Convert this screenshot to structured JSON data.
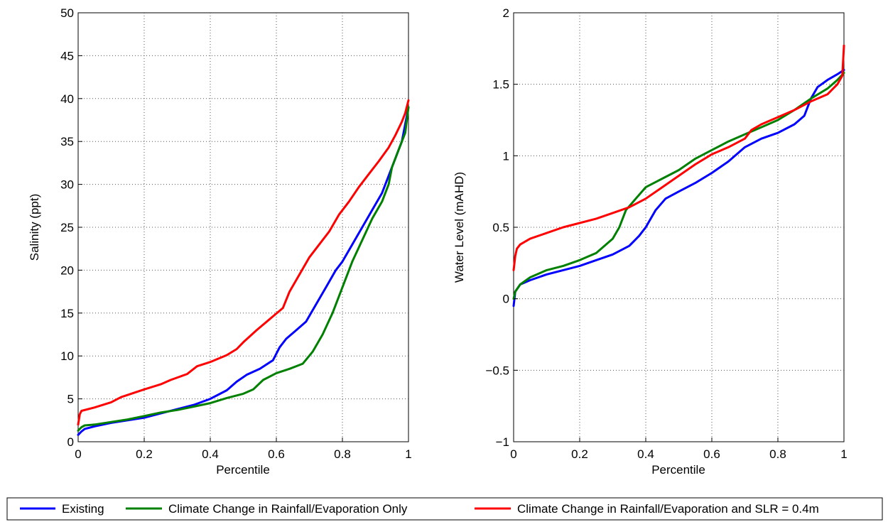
{
  "chart_data": [
    {
      "type": "line",
      "title": "",
      "xlabel": "Percentile",
      "ylabel": "Salinity (ppt)",
      "xlim": [
        0,
        1
      ],
      "ylim": [
        0,
        50
      ],
      "grid": true,
      "xticks": [
        0,
        0.2,
        0.4,
        0.6,
        0.8,
        1
      ],
      "xtick_labels": [
        "0",
        "0.2",
        "0.4",
        "0.6",
        "0.8",
        "1"
      ],
      "yticks": [
        0,
        5,
        10,
        15,
        20,
        25,
        30,
        35,
        40,
        45,
        50
      ],
      "ytick_labels": [
        "0",
        "5",
        "10",
        "15",
        "20",
        "25",
        "30",
        "35",
        "40",
        "45",
        "50"
      ],
      "series": [
        {
          "name": "Existing",
          "color": "#0000ff",
          "points": [
            [
              0,
              0.8
            ],
            [
              0.01,
              1.2
            ],
            [
              0.02,
              1.5
            ],
            [
              0.05,
              1.8
            ],
            [
              0.1,
              2.2
            ],
            [
              0.15,
              2.5
            ],
            [
              0.2,
              2.8
            ],
            [
              0.25,
              3.3
            ],
            [
              0.3,
              3.8
            ],
            [
              0.35,
              4.3
            ],
            [
              0.4,
              5
            ],
            [
              0.45,
              6
            ],
            [
              0.48,
              7
            ],
            [
              0.51,
              7.8
            ],
            [
              0.55,
              8.5
            ],
            [
              0.59,
              9.5
            ],
            [
              0.61,
              11
            ],
            [
              0.63,
              12
            ],
            [
              0.66,
              13
            ],
            [
              0.69,
              14
            ],
            [
              0.72,
              16
            ],
            [
              0.75,
              18
            ],
            [
              0.78,
              20
            ],
            [
              0.8,
              21
            ],
            [
              0.83,
              23
            ],
            [
              0.86,
              25
            ],
            [
              0.89,
              27
            ],
            [
              0.92,
              29
            ],
            [
              0.94,
              31
            ],
            [
              0.96,
              33
            ],
            [
              0.97,
              34
            ],
            [
              0.98,
              35
            ],
            [
              0.99,
              37
            ],
            [
              1,
              39
            ]
          ]
        },
        {
          "name": "Climate Change in Rainfall/Evaporation Only",
          "color": "#008000",
          "points": [
            [
              0,
              1.3
            ],
            [
              0.01,
              1.7
            ],
            [
              0.02,
              1.9
            ],
            [
              0.05,
              2.0
            ],
            [
              0.1,
              2.3
            ],
            [
              0.15,
              2.6
            ],
            [
              0.2,
              3.0
            ],
            [
              0.25,
              3.4
            ],
            [
              0.3,
              3.7
            ],
            [
              0.35,
              4.1
            ],
            [
              0.4,
              4.5
            ],
            [
              0.45,
              5.1
            ],
            [
              0.5,
              5.6
            ],
            [
              0.53,
              6.1
            ],
            [
              0.56,
              7.2
            ],
            [
              0.6,
              8
            ],
            [
              0.64,
              8.5
            ],
            [
              0.68,
              9.1
            ],
            [
              0.71,
              10.5
            ],
            [
              0.74,
              12.5
            ],
            [
              0.77,
              15
            ],
            [
              0.8,
              18
            ],
            [
              0.83,
              21
            ],
            [
              0.86,
              23.5
            ],
            [
              0.89,
              26
            ],
            [
              0.92,
              28
            ],
            [
              0.94,
              30
            ],
            [
              0.95,
              32
            ],
            [
              0.97,
              34
            ],
            [
              0.99,
              36
            ],
            [
              1,
              39
            ]
          ]
        },
        {
          "name": "Climate Change in Rainfall/Evaporation and SLR = 0.4m",
          "color": "#ff0000",
          "points": [
            [
              0,
              2
            ],
            [
              0.005,
              3.2
            ],
            [
              0.01,
              3.6
            ],
            [
              0.05,
              4
            ],
            [
              0.1,
              4.6
            ],
            [
              0.13,
              5.2
            ],
            [
              0.2,
              6.1
            ],
            [
              0.25,
              6.7
            ],
            [
              0.28,
              7.2
            ],
            [
              0.33,
              7.9
            ],
            [
              0.36,
              8.8
            ],
            [
              0.4,
              9.3
            ],
            [
              0.45,
              10.1
            ],
            [
              0.48,
              10.8
            ],
            [
              0.5,
              11.6
            ],
            [
              0.54,
              13
            ],
            [
              0.58,
              14.3
            ],
            [
              0.62,
              15.6
            ],
            [
              0.64,
              17.5
            ],
            [
              0.67,
              19.5
            ],
            [
              0.7,
              21.5
            ],
            [
              0.73,
              23
            ],
            [
              0.76,
              24.5
            ],
            [
              0.79,
              26.5
            ],
            [
              0.82,
              28
            ],
            [
              0.85,
              29.7
            ],
            [
              0.88,
              31.2
            ],
            [
              0.91,
              32.7
            ],
            [
              0.94,
              34.3
            ],
            [
              0.96,
              35.7
            ],
            [
              0.98,
              37.3
            ],
            [
              0.99,
              38.3
            ],
            [
              1,
              39.8
            ]
          ]
        }
      ]
    },
    {
      "type": "line",
      "title": "",
      "xlabel": "Percentile",
      "ylabel": "Water Level (mAHD)",
      "xlim": [
        0,
        1
      ],
      "ylim": [
        -1,
        2
      ],
      "grid": true,
      "xticks": [
        0,
        0.2,
        0.4,
        0.6,
        0.8,
        1
      ],
      "xtick_labels": [
        "0",
        "0.2",
        "0.4",
        "0.6",
        "0.8",
        "1"
      ],
      "yticks": [
        -1,
        -0.5,
        0,
        0.5,
        1,
        1.5,
        2
      ],
      "ytick_labels": [
        "−1",
        "−0.5",
        "0",
        "0.5",
        "1",
        "1.5",
        "2"
      ],
      "series": [
        {
          "name": "Existing",
          "color": "#0000ff",
          "points": [
            [
              0,
              -0.05
            ],
            [
              0.005,
              0.05
            ],
            [
              0.02,
              0.1
            ],
            [
              0.05,
              0.13
            ],
            [
              0.1,
              0.17
            ],
            [
              0.15,
              0.2
            ],
            [
              0.2,
              0.23
            ],
            [
              0.25,
              0.27
            ],
            [
              0.3,
              0.31
            ],
            [
              0.35,
              0.37
            ],
            [
              0.38,
              0.44
            ],
            [
              0.4,
              0.5
            ],
            [
              0.43,
              0.62
            ],
            [
              0.46,
              0.7
            ],
            [
              0.5,
              0.75
            ],
            [
              0.55,
              0.81
            ],
            [
              0.6,
              0.88
            ],
            [
              0.65,
              0.96
            ],
            [
              0.7,
              1.06
            ],
            [
              0.75,
              1.12
            ],
            [
              0.8,
              1.16
            ],
            [
              0.85,
              1.22
            ],
            [
              0.88,
              1.28
            ],
            [
              0.9,
              1.4
            ],
            [
              0.92,
              1.48
            ],
            [
              0.95,
              1.53
            ],
            [
              0.98,
              1.57
            ],
            [
              1,
              1.6
            ]
          ]
        },
        {
          "name": "Climate Change in Rainfall/Evaporation Only",
          "color": "#008000",
          "points": [
            [
              0,
              0
            ],
            [
              0.005,
              0.05
            ],
            [
              0.02,
              0.1
            ],
            [
              0.05,
              0.15
            ],
            [
              0.1,
              0.2
            ],
            [
              0.15,
              0.23
            ],
            [
              0.2,
              0.27
            ],
            [
              0.25,
              0.32
            ],
            [
              0.3,
              0.42
            ],
            [
              0.32,
              0.5
            ],
            [
              0.34,
              0.62
            ],
            [
              0.37,
              0.7
            ],
            [
              0.4,
              0.78
            ],
            [
              0.45,
              0.84
            ],
            [
              0.5,
              0.9
            ],
            [
              0.55,
              0.98
            ],
            [
              0.6,
              1.04
            ],
            [
              0.65,
              1.1
            ],
            [
              0.7,
              1.15
            ],
            [
              0.75,
              1.2
            ],
            [
              0.8,
              1.25
            ],
            [
              0.85,
              1.32
            ],
            [
              0.9,
              1.4
            ],
            [
              0.95,
              1.47
            ],
            [
              0.98,
              1.53
            ],
            [
              1,
              1.58
            ]
          ]
        },
        {
          "name": "Climate Change in Rainfall/Evaporation and SLR = 0.4m",
          "color": "#ff0000",
          "points": [
            [
              0,
              0.2
            ],
            [
              0.005,
              0.3
            ],
            [
              0.01,
              0.35
            ],
            [
              0.02,
              0.38
            ],
            [
              0.05,
              0.42
            ],
            [
              0.1,
              0.46
            ],
            [
              0.15,
              0.5
            ],
            [
              0.2,
              0.53
            ],
            [
              0.25,
              0.56
            ],
            [
              0.3,
              0.6
            ],
            [
              0.35,
              0.64
            ],
            [
              0.4,
              0.7
            ],
            [
              0.45,
              0.78
            ],
            [
              0.5,
              0.86
            ],
            [
              0.55,
              0.94
            ],
            [
              0.6,
              1.01
            ],
            [
              0.65,
              1.06
            ],
            [
              0.7,
              1.12
            ],
            [
              0.72,
              1.18
            ],
            [
              0.75,
              1.22
            ],
            [
              0.8,
              1.27
            ],
            [
              0.85,
              1.32
            ],
            [
              0.9,
              1.38
            ],
            [
              0.95,
              1.43
            ],
            [
              0.98,
              1.5
            ],
            [
              0.995,
              1.56
            ],
            [
              1,
              1.77
            ]
          ]
        }
      ]
    }
  ],
  "legend": {
    "items": [
      {
        "label": "Existing",
        "color": "#0000ff"
      },
      {
        "label": "Climate Change in Rainfall/Evaporation Only",
        "color": "#008000"
      },
      {
        "label": "Climate Change in Rainfall/Evaporation and SLR = 0.4m",
        "color": "#ff0000"
      }
    ]
  }
}
